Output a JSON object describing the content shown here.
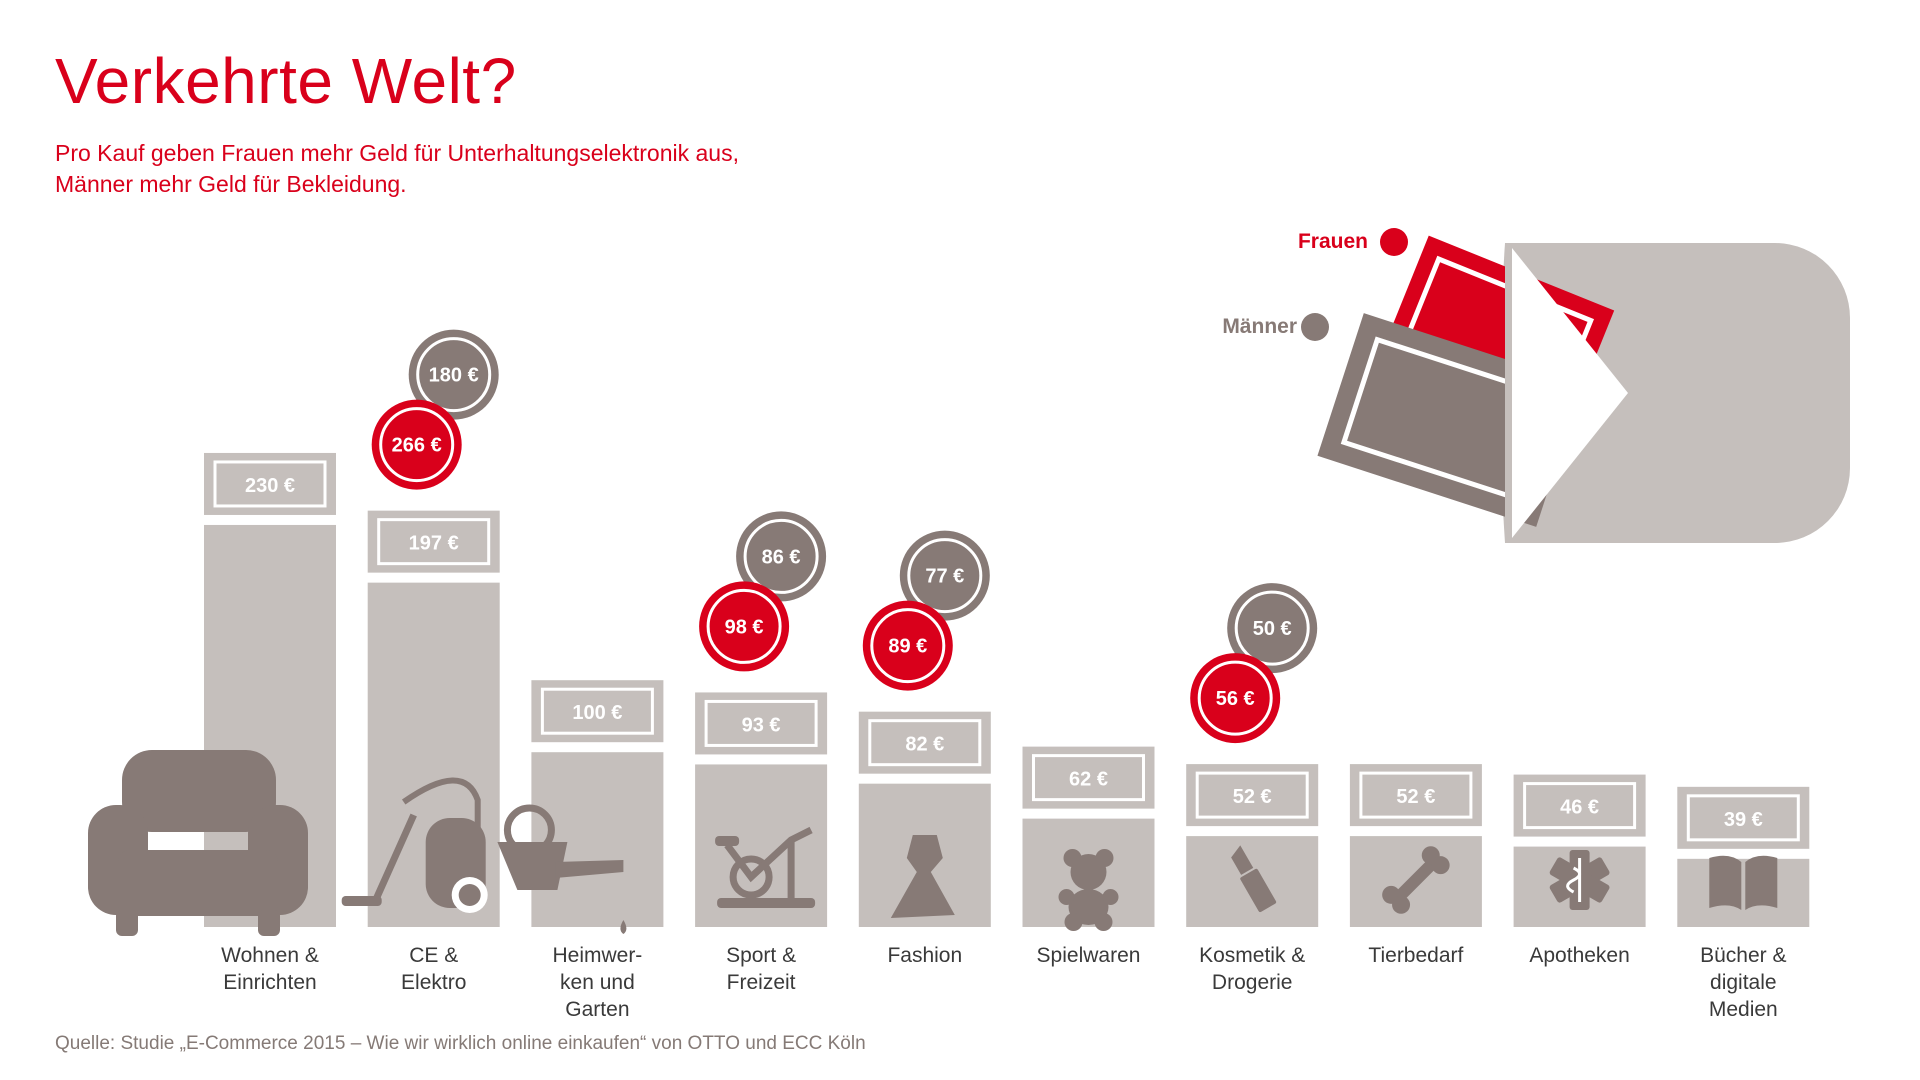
{
  "title": "Verkehrte Welt?",
  "subtitle_lines": [
    "Pro Kauf geben Frauen mehr Geld für Unterhaltungselektronik aus,",
    "Männer mehr Geld für Bekleidung."
  ],
  "source": "Quelle: Studie „E-Commerce 2015 – Wie wir wirklich online einkaufen“ von OTTO und ECC Köln",
  "legend": {
    "women": "Frauen",
    "men": "Männer"
  },
  "colors": {
    "bar": "#c5bfbc",
    "men": "#877a76",
    "women": "#d9001b",
    "text": "#3a3a3a"
  },
  "chart_data": {
    "type": "bar",
    "unit": "€",
    "categories": [
      [
        "Wohnen &",
        "Einrichten"
      ],
      [
        "CE &",
        "Elektro"
      ],
      [
        "Heimwer-",
        "ken und",
        "Garten"
      ],
      [
        "Sport &",
        "Freizeit"
      ],
      [
        "Fashion"
      ],
      [
        "Spielwaren"
      ],
      [
        "Kosmetik &",
        "Drogerie"
      ],
      [
        "Tierbedarf"
      ],
      [
        "Apotheken"
      ],
      [
        "Bücher &",
        "digitale",
        "Medien"
      ]
    ],
    "icons": [
      "sofa-icon",
      "vacuum-cleaner-icon",
      "watering-can-icon",
      "exercise-bike-icon",
      "dress-icon",
      "teddy-bear-icon",
      "lipstick-icon",
      "bone-icon",
      "pharmacy-icon",
      "book-icon"
    ],
    "series": [
      {
        "values": [
          230,
          197,
          100,
          93,
          82,
          62,
          52,
          52,
          46,
          39
        ],
        "labels": [
          "230 €",
          "197 €",
          "100 €",
          "93 €",
          "82 €",
          "62 €",
          "52 €",
          "52 €",
          "46 €",
          "39 €"
        ]
      }
    ],
    "gender_split": [
      {
        "category_index": 1,
        "women": 266,
        "men": 180,
        "women_label": "266 €",
        "men_label": "180 €"
      },
      {
        "category_index": 3,
        "women": 98,
        "men": 86,
        "women_label": "98 €",
        "men_label": "86 €"
      },
      {
        "category_index": 4,
        "women": 89,
        "men": 77,
        "women_label": "89 €",
        "men_label": "77 €"
      },
      {
        "category_index": 6,
        "women": 56,
        "men": 50,
        "women_label": "56 €",
        "men_label": "50 €"
      }
    ],
    "legend_position": "top-right"
  }
}
